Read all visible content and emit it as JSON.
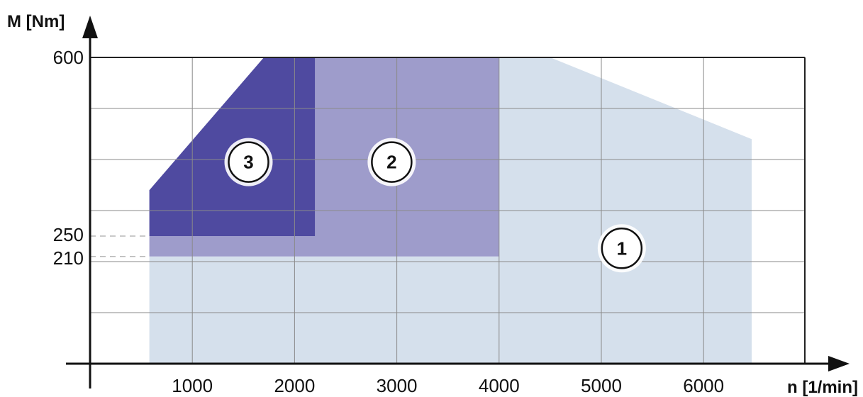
{
  "chart_data": {
    "type": "area",
    "title": "",
    "xlabel": "n [1/min]",
    "ylabel": "M [Nm]",
    "xlim": [
      0,
      7000
    ],
    "ylim": [
      0,
      600
    ],
    "x_ticks": [
      1000,
      2000,
      3000,
      4000,
      5000,
      6000
    ],
    "y_ticks": [
      210,
      250,
      600
    ],
    "x_tick_labels": [
      "1000",
      "2000",
      "3000",
      "4000",
      "5000",
      "6000"
    ],
    "y_tick_labels": [
      "210",
      "250",
      "600"
    ],
    "grid": true,
    "regions": [
      {
        "label": "1",
        "color": "#d5e0ec",
        "label_pos": [
          5200,
          226
        ],
        "points": [
          [
            580,
            0
          ],
          [
            580,
            210
          ],
          [
            4000,
            210
          ],
          [
            4000,
            600
          ],
          [
            4500,
            600
          ],
          [
            6470,
            440
          ],
          [
            6470,
            0
          ]
        ]
      },
      {
        "label": "2",
        "color": "#9e9ccb",
        "label_pos": [
          2950,
          395
        ],
        "points": [
          [
            580,
            210
          ],
          [
            580,
            250
          ],
          [
            2200,
            250
          ],
          [
            2200,
            600
          ],
          [
            4000,
            600
          ],
          [
            4000,
            210
          ]
        ]
      },
      {
        "label": "3",
        "color": "#4f4aa0",
        "label_pos": [
          1550,
          395
        ],
        "points": [
          [
            580,
            250
          ],
          [
            580,
            340
          ],
          [
            1700,
            600
          ],
          [
            2200,
            600
          ],
          [
            2200,
            250
          ]
        ]
      }
    ]
  }
}
